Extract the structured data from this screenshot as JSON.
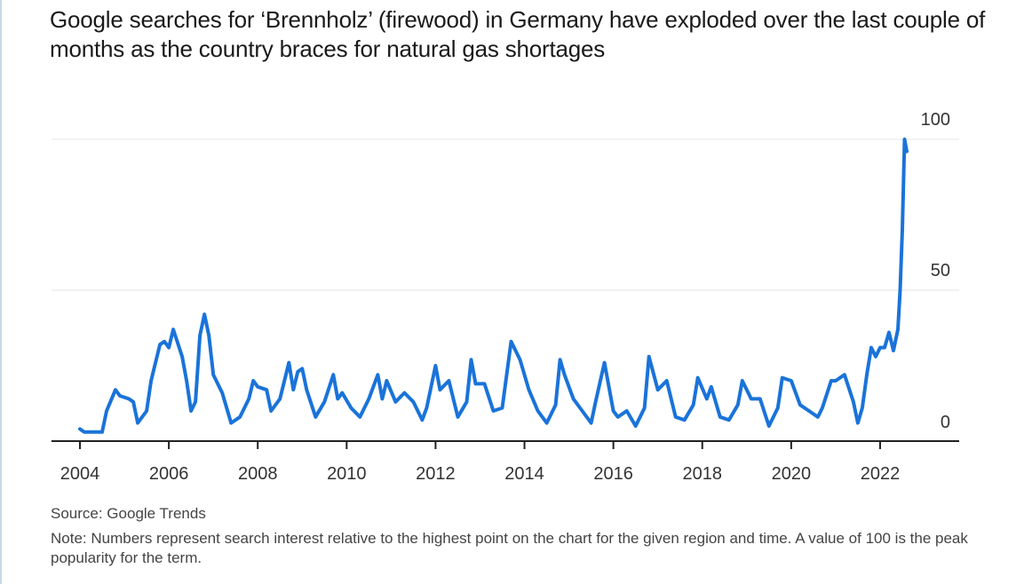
{
  "title": "Google searches for ‘Brennholz’ (firewood) in Germany have exploded over the last couple of months as the country braces for natural gas shortages",
  "source": "Source: Google Trends",
  "note": "Note: Numbers represent search interest relative to the highest point on the chart for the given region and time. A value of 100 is the peak popularity for the term.",
  "colors": {
    "line": "#1a73d9",
    "grid": "#e4e4e4",
    "axis": "#222222"
  },
  "chart_data": {
    "type": "line",
    "title": "Google searches for ‘Brennholz’ (firewood) in Germany have exploded over the last couple of months as the country braces for natural gas shortages",
    "xlabel": "",
    "ylabel": "",
    "xlim": [
      2003.7,
      2023.2
    ],
    "ylim": [
      0,
      100
    ],
    "x_ticks": [
      2004,
      2006,
      2008,
      2010,
      2012,
      2014,
      2016,
      2018,
      2020,
      2022
    ],
    "x_tick_labels": [
      "2004",
      "2006",
      "2008",
      "2010",
      "2012",
      "2014",
      "2016",
      "2018",
      "2020",
      "2022"
    ],
    "y_ticks": [
      0,
      50,
      100
    ],
    "y_tick_labels": [
      "0",
      "50",
      "100"
    ],
    "y_axis_side": "right",
    "grid": "horizontal",
    "series": [
      {
        "x": [
          2004.0,
          2004.1,
          2004.3,
          2004.5,
          2004.6,
          2004.8,
          2004.9,
          2005.1,
          2005.2,
          2005.3,
          2005.5,
          2005.6,
          2005.8,
          2005.9,
          2006.0,
          2006.1,
          2006.3,
          2006.4,
          2006.5,
          2006.6,
          2006.7,
          2006.8,
          2006.9,
          2007.0,
          2007.2,
          2007.4,
          2007.6,
          2007.8,
          2007.9,
          2008.0,
          2008.2,
          2008.3,
          2008.5,
          2008.7,
          2008.8,
          2008.9,
          2009.0,
          2009.1,
          2009.3,
          2009.5,
          2009.7,
          2009.8,
          2009.9,
          2010.1,
          2010.3,
          2010.5,
          2010.7,
          2010.8,
          2010.9,
          2011.1,
          2011.3,
          2011.5,
          2011.7,
          2011.8,
          2012.0,
          2012.1,
          2012.3,
          2012.5,
          2012.7,
          2012.8,
          2012.9,
          2013.1,
          2013.3,
          2013.5,
          2013.7,
          2013.9,
          2014.1,
          2014.3,
          2014.5,
          2014.7,
          2014.8,
          2014.9,
          2015.1,
          2015.3,
          2015.5,
          2015.6,
          2015.8,
          2016.0,
          2016.1,
          2016.3,
          2016.5,
          2016.7,
          2016.8,
          2017.0,
          2017.2,
          2017.4,
          2017.6,
          2017.8,
          2017.9,
          2018.1,
          2018.2,
          2018.4,
          2018.6,
          2018.8,
          2018.9,
          2019.1,
          2019.3,
          2019.5,
          2019.7,
          2019.8,
          2020.0,
          2020.2,
          2020.4,
          2020.6,
          2020.7,
          2020.9,
          2021.0,
          2021.2,
          2021.4,
          2021.5,
          2021.6,
          2021.7,
          2021.8,
          2021.9,
          2022.0,
          2022.1,
          2022.2,
          2022.3,
          2022.4,
          2022.45,
          2022.5,
          2022.55,
          2022.6
        ],
        "y": [
          4,
          3,
          3,
          3,
          10,
          17,
          15,
          14,
          13,
          6,
          10,
          20,
          32,
          33,
          31,
          37,
          28,
          20,
          10,
          13,
          35,
          42,
          35,
          22,
          16,
          6,
          8,
          14,
          20,
          18,
          17,
          10,
          14,
          26,
          17,
          23,
          24,
          17,
          8,
          13,
          22,
          14,
          16,
          11,
          8,
          14,
          22,
          14,
          20,
          13,
          16,
          13,
          7,
          11,
          25,
          17,
          20,
          8,
          13,
          27,
          19,
          19,
          10,
          11,
          33,
          27,
          17,
          10,
          6,
          12,
          27,
          22,
          14,
          10,
          6,
          13,
          26,
          10,
          8,
          10,
          5,
          11,
          28,
          17,
          20,
          8,
          7,
          12,
          21,
          14,
          18,
          8,
          7,
          12,
          20,
          14,
          14,
          5,
          11,
          21,
          20,
          12,
          10,
          8,
          11,
          20,
          20,
          22,
          13,
          6,
          11,
          22,
          31,
          28,
          31,
          31,
          36,
          30,
          37,
          50,
          70,
          100,
          96
        ]
      }
    ]
  }
}
